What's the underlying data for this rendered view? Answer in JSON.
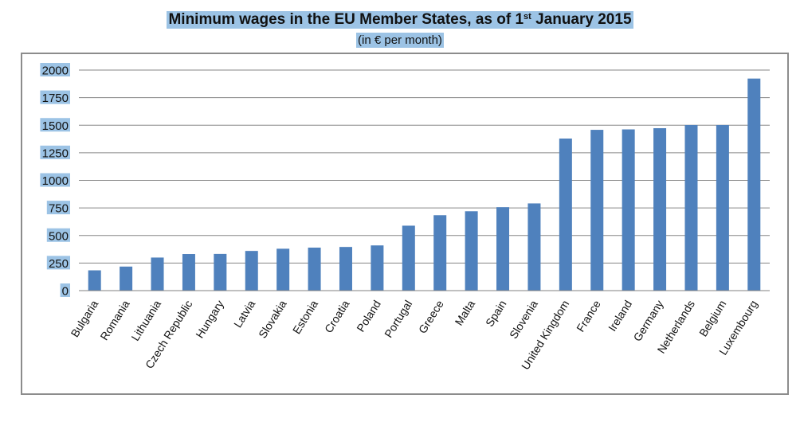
{
  "chart_data": {
    "type": "bar",
    "title_main": "Minimum wages in the EU Member States, as of 1",
    "title_sup": "st",
    "title_tail": " January 2015",
    "subtitle": "(in € per month)",
    "xlabel": "",
    "ylabel": "",
    "ylim": [
      0,
      2000
    ],
    "yticks": [
      "0",
      "250",
      "500",
      "750",
      "1000",
      "1250",
      "1500",
      "1750",
      "2000"
    ],
    "grid": true,
    "bar_color": "#4f81bd",
    "categories": [
      "Bulgaria",
      "Romania",
      "Lithuania",
      "Czech Republic",
      "Hungary",
      "Latvia",
      "Slovakia",
      "Estonia",
      "Croatia",
      "Poland",
      "Portugal",
      "Greece",
      "Malta",
      "Spain",
      "Slovenia",
      "United Kingdom",
      "France",
      "Ireland",
      "Germany",
      "Netherlands",
      "Belgium",
      "Luxembourg"
    ],
    "values": [
      184,
      218,
      300,
      332,
      333,
      360,
      380,
      390,
      396,
      410,
      589,
      684,
      720,
      757,
      791,
      1379,
      1458,
      1462,
      1473,
      1502,
      1502,
      1923
    ]
  }
}
